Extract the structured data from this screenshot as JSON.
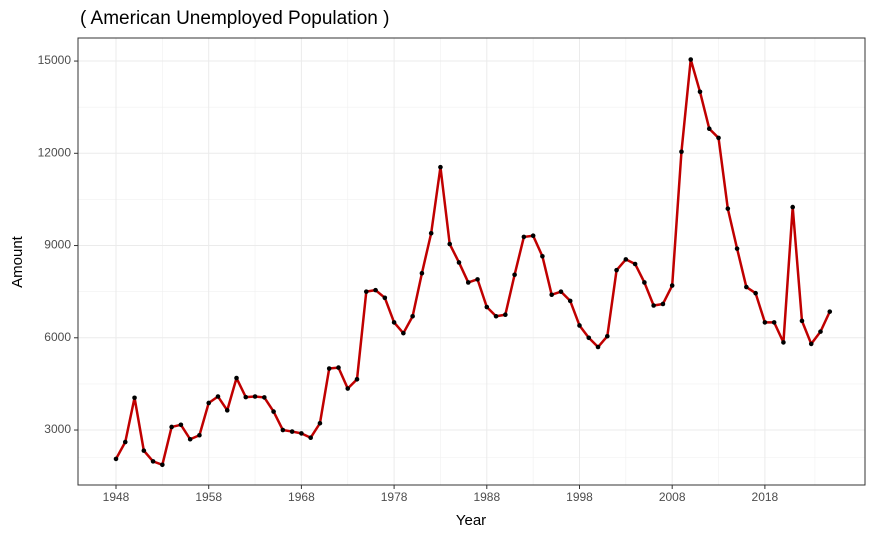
{
  "chart_data": {
    "type": "line",
    "title": "( American Unemployed Population )",
    "x_label": "Year",
    "y_label": "Amount",
    "x": [
      1948,
      1949,
      1950,
      1951,
      1952,
      1953,
      1954,
      1955,
      1956,
      1957,
      1958,
      1959,
      1960,
      1961,
      1962,
      1963,
      1964,
      1965,
      1966,
      1967,
      1968,
      1969,
      1970,
      1971,
      1972,
      1973,
      1974,
      1975,
      1976,
      1977,
      1978,
      1979,
      1980,
      1981,
      1982,
      1983,
      1984,
      1985,
      1986,
      1987,
      1988,
      1989,
      1990,
      1991,
      1992,
      1993,
      1994,
      1995,
      1996,
      1997,
      1998,
      1999,
      2000,
      2001,
      2002,
      2003,
      2004,
      2005,
      2006,
      2007,
      2008,
      2009,
      2010,
      2011,
      2012,
      2013,
      2014,
      2015,
      2016,
      2017,
      2018,
      2019,
      2020,
      2021,
      2022,
      2023,
      2024,
      2025
    ],
    "series": [
      {
        "name": "Amount",
        "color": "#c00000",
        "point_color": "#000000",
        "values": [
          2060,
          2610,
          4050,
          2330,
          1980,
          1870,
          3100,
          3170,
          2700,
          2830,
          3880,
          4090,
          3640,
          4690,
          4070,
          4090,
          4060,
          3600,
          3000,
          2950,
          2890,
          2750,
          3220,
          5000,
          5030,
          4350,
          4650,
          7500,
          7550,
          7300,
          6500,
          6150,
          6700,
          8100,
          9400,
          11550,
          9050,
          8450,
          7800,
          7900,
          7000,
          6700,
          6750,
          8050,
          9280,
          9320,
          8650,
          7400,
          7500,
          7200,
          6400,
          6000,
          5700,
          6050,
          8200,
          8550,
          8400,
          7800,
          7050,
          7100,
          7700,
          12050,
          15050,
          14000,
          12800,
          12500,
          10200,
          8900,
          7650,
          7450,
          6500,
          6500,
          5850,
          10250,
          6550,
          5800,
          6200,
          6850
        ]
      }
    ],
    "xlim": [
      1943.9,
      2028.8
    ],
    "ylim": [
      1212,
      15750
    ],
    "xticks": [
      1948,
      1958,
      1968,
      1978,
      1988,
      1998,
      2008,
      2018
    ],
    "yticks": [
      3000,
      6000,
      9000,
      12000,
      15000
    ],
    "grid": true
  }
}
